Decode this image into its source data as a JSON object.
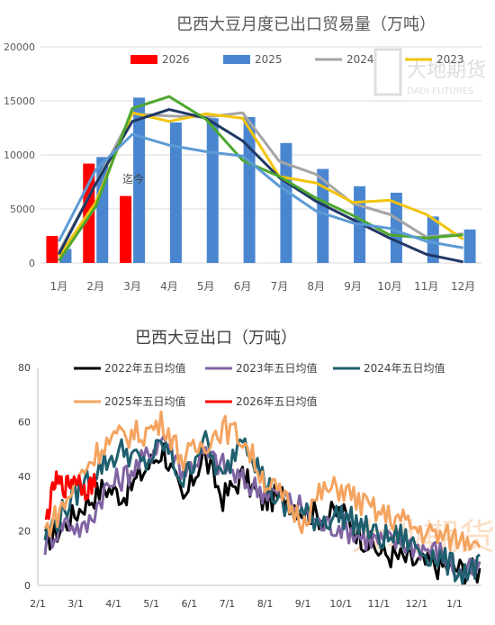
{
  "chart_data": [
    {
      "type": "bar",
      "title": "巴西大豆月度已出口贸易量（万吨）",
      "categories": [
        "1月",
        "2月",
        "3月",
        "4月",
        "5月",
        "6月",
        "7月",
        "8月",
        "9月",
        "10月",
        "11月",
        "12月"
      ],
      "ylim": [
        0,
        20000
      ],
      "yticks": [
        0,
        5000,
        10000,
        15000,
        20000
      ],
      "grid": true,
      "legend_position": "top",
      "annotation": "迄今",
      "watermark": "大地期货 DADI FUTURES",
      "bar_series": [
        {
          "name": "2026",
          "color": "#ff0000",
          "values": [
            2500,
            9200,
            6200,
            null,
            null,
            null,
            null,
            null,
            null,
            null,
            null,
            null
          ]
        },
        {
          "name": "2025",
          "color": "#4a86d0",
          "values": [
            1300,
            9800,
            15300,
            13000,
            13400,
            13500,
            11100,
            8700,
            7100,
            6500,
            4300,
            3100
          ]
        }
      ],
      "line_series": [
        {
          "name": "2024",
          "color": "#a5a5a5",
          "width": 3,
          "legend": true,
          "values": [
            1000,
            7300,
            13800,
            13600,
            13500,
            13900,
            9400,
            8200,
            5500,
            4500,
            2400,
            2700
          ]
        },
        {
          "name": "2023",
          "color": "#f2c40c",
          "width": 3,
          "legend": true,
          "values": [
            600,
            5600,
            13900,
            13100,
            13800,
            13400,
            8000,
            7400,
            5600,
            5800,
            4500,
            2200
          ]
        },
        {
          "name": "",
          "color": "#203864",
          "width": 3,
          "legend": false,
          "values": [
            800,
            7300,
            13100,
            14200,
            13400,
            11300,
            7900,
            5700,
            4000,
            2300,
            800,
            100
          ]
        },
        {
          "name": "",
          "color": "#4ea72e",
          "width": 3,
          "legend": false,
          "values": [
            200,
            5200,
            14300,
            15400,
            13300,
            9500,
            8000,
            6000,
            4400,
            2600,
            2300,
            2600
          ]
        },
        {
          "name": "",
          "color": "#5b9bd5",
          "width": 3,
          "legend": false,
          "values": [
            2000,
            8600,
            11900,
            10900,
            10300,
            9900,
            7100,
            4800,
            3700,
            3200,
            2000,
            1400
          ]
        }
      ]
    },
    {
      "type": "line",
      "title": "巴西大豆出口（万吨）",
      "ylim": [
        0,
        80
      ],
      "yticks": [
        0,
        20,
        40,
        60,
        80
      ],
      "xticks": [
        "2/1",
        "3/1",
        "4/1",
        "5/1",
        "6/1",
        "7/1",
        "8/1",
        "9/1",
        "10/1",
        "11/1",
        "12/1",
        "1/1"
      ],
      "grid": false,
      "legend_position": "top",
      "watermark": "大地期货",
      "series": [
        {
          "name": "2022年五日均值",
          "color": "#000000",
          "values": [
            16,
            22,
            30,
            36,
            33,
            42,
            50,
            30,
            48,
            32,
            40,
            31,
            33,
            28,
            25,
            27,
            18,
            12,
            10,
            8,
            7,
            6,
            5
          ]
        },
        {
          "name": "2023年五日均值",
          "color": "#8064a2",
          "values": [
            15,
            24,
            20,
            35,
            40,
            46,
            55,
            42,
            48,
            44,
            38,
            35,
            33,
            28,
            22,
            22,
            18,
            16,
            16,
            14,
            12,
            4,
            6
          ]
        },
        {
          "name": "2024年五日均值",
          "color": "#1f5f6e",
          "values": [
            18,
            28,
            38,
            45,
            50,
            44,
            52,
            38,
            54,
            38,
            57,
            40,
            28,
            26,
            24,
            26,
            22,
            17,
            18,
            13,
            10,
            5,
            7
          ]
        },
        {
          "name": "2025年五日均值",
          "color": "#f4a460",
          "values": [
            20,
            30,
            43,
            52,
            55,
            56,
            60,
            46,
            52,
            58,
            54,
            40,
            32,
            24,
            34,
            36,
            30,
            26,
            24,
            20,
            18,
            17,
            18
          ]
        },
        {
          "name": "2026年五日均值",
          "color": "#ff0000",
          "values": [
            22,
            38,
            36,
            40,
            35,
            38
          ]
        }
      ]
    }
  ]
}
